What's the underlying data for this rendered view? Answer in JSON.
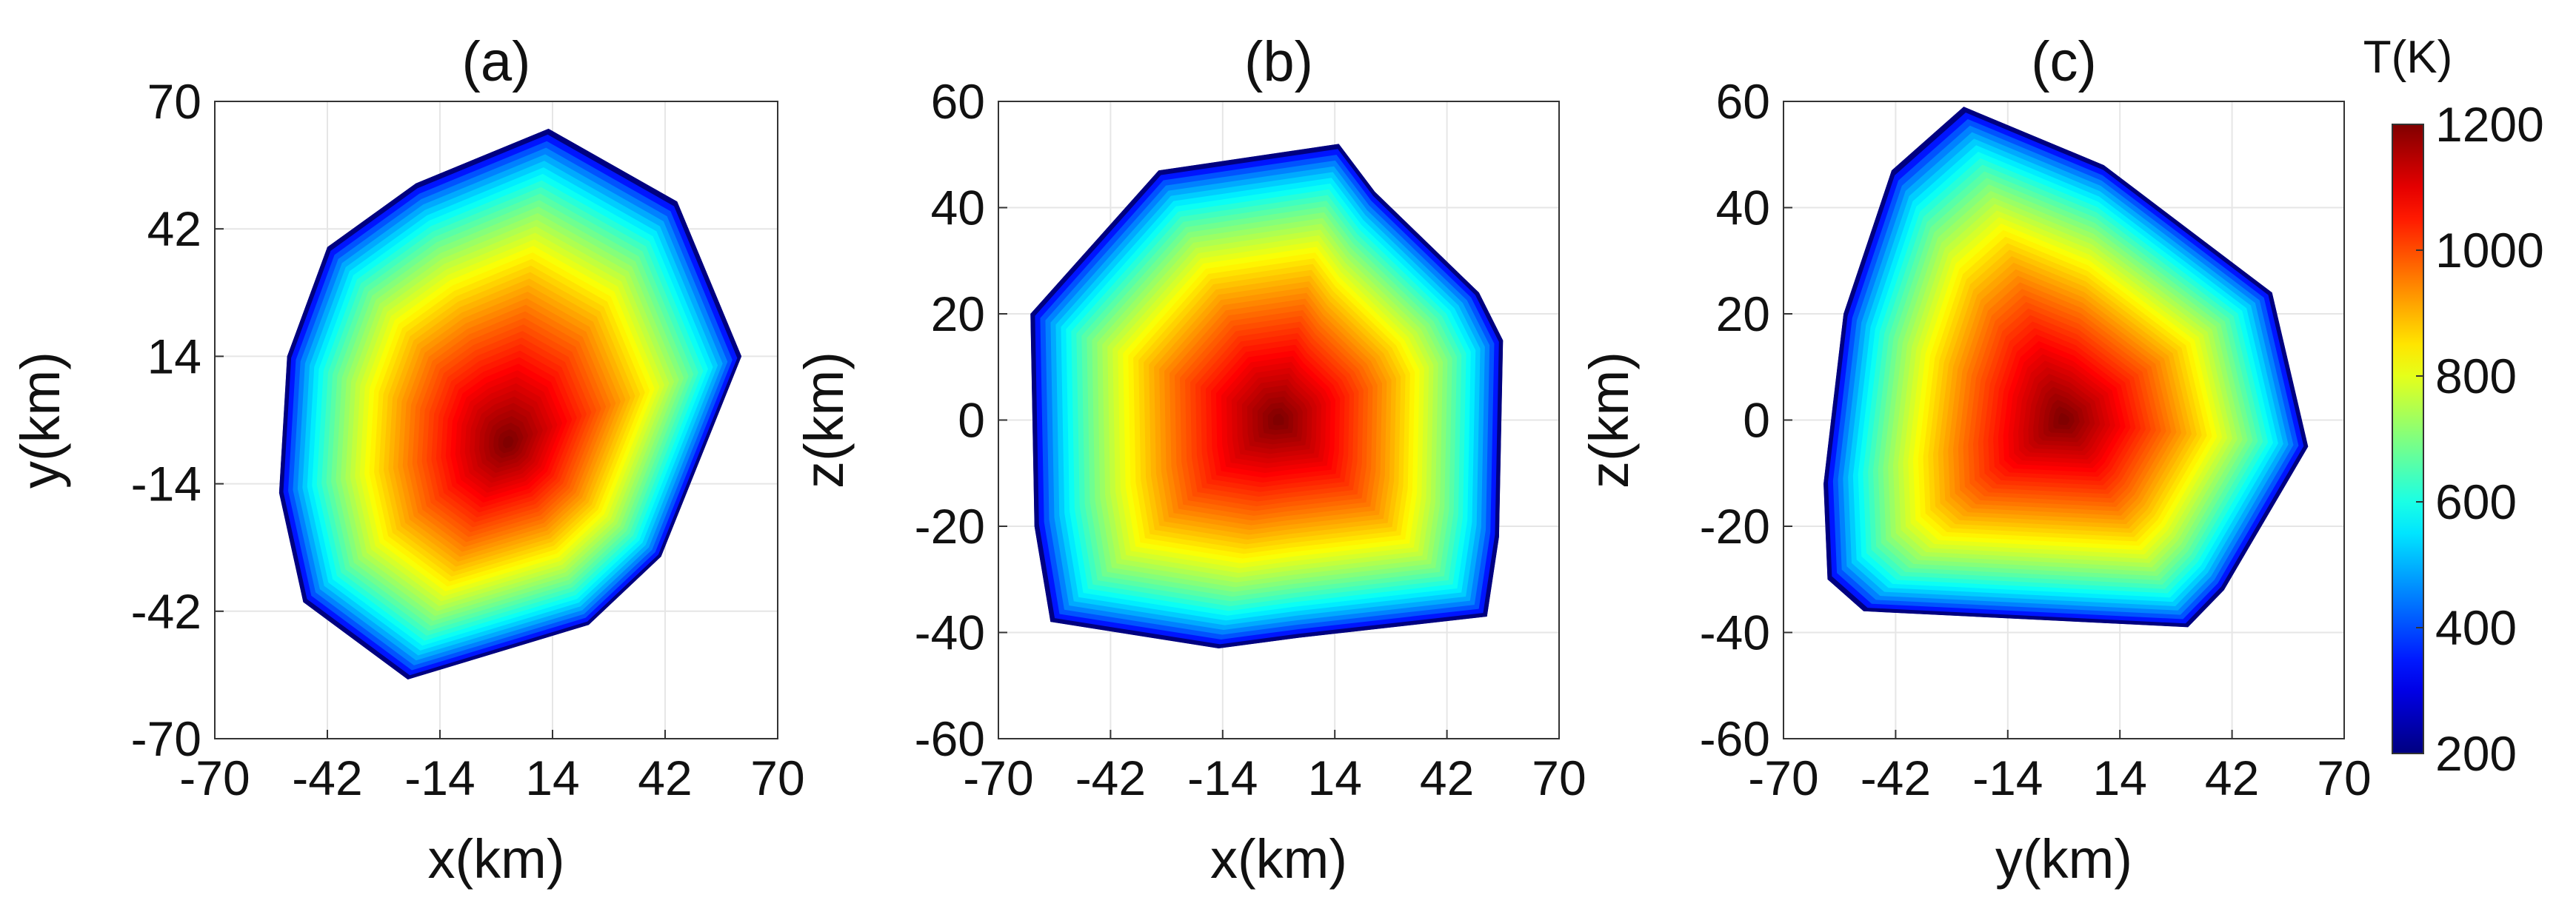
{
  "chart_data": [
    {
      "type": "heatmap",
      "title": "(a)",
      "xlabel": "x(km)",
      "ylabel": "y(km)",
      "xlim": [
        -70,
        70
      ],
      "ylim": [
        -70,
        70
      ],
      "xticks": [
        "-70",
        "-42",
        "-14",
        "14",
        "42",
        "70"
      ],
      "yticks": [
        "-70",
        "-42",
        "-14",
        "14",
        "42",
        "70"
      ],
      "grid": true,
      "field": "T(K)",
      "boundary": [
        [
          13,
          64
        ],
        [
          45,
          48
        ],
        [
          61,
          14
        ],
        [
          41,
          -30
        ],
        [
          23,
          -45
        ],
        [
          -22,
          -57
        ],
        [
          -48,
          -40
        ],
        [
          -54,
          -16
        ],
        [
          -52,
          14
        ],
        [
          -42,
          38
        ],
        [
          -20,
          52
        ]
      ],
      "peak": {
        "x": 3,
        "y": -5,
        "T": 1200
      }
    },
    {
      "type": "heatmap",
      "title": "(b)",
      "xlabel": "x(km)",
      "ylabel": "z(km)",
      "xlim": [
        -70,
        70
      ],
      "ylim": [
        -60,
        60
      ],
      "xticks": [
        "-70",
        "-42",
        "-14",
        "14",
        "42",
        "70"
      ],
      "yticks": [
        "-60",
        "-40",
        "-20",
        "0",
        "20",
        "40",
        "60"
      ],
      "grid": true,
      "field": "T(K)",
      "boundary": [
        [
          -30,
          47
        ],
        [
          15,
          52
        ],
        [
          24,
          43
        ],
        [
          50,
          24
        ],
        [
          56,
          15
        ],
        [
          55,
          -22
        ],
        [
          52,
          -37
        ],
        [
          5,
          -41
        ],
        [
          -15,
          -43
        ],
        [
          -57,
          -38
        ],
        [
          -61,
          -20
        ],
        [
          -62,
          20
        ]
      ],
      "peak": {
        "x": 0,
        "y": 0,
        "T": 1200
      }
    },
    {
      "type": "heatmap",
      "title": "(c)",
      "xlabel": "y(km)",
      "ylabel": "z(km)",
      "xlim": [
        -70,
        70
      ],
      "ylim": [
        -60,
        60
      ],
      "xticks": [
        "-70",
        "-42",
        "-14",
        "14",
        "42",
        "70"
      ],
      "yticks": [
        "-60",
        "-40",
        "-20",
        "0",
        "20",
        "40",
        "60"
      ],
      "grid": true,
      "field": "T(K)",
      "boundary": [
        [
          -25,
          59
        ],
        [
          10,
          48
        ],
        [
          52,
          24
        ],
        [
          61,
          -5
        ],
        [
          40,
          -32
        ],
        [
          31,
          -39
        ],
        [
          -50,
          -36
        ],
        [
          -59,
          -30
        ],
        [
          -60,
          -12
        ],
        [
          -55,
          20
        ],
        [
          -43,
          47
        ]
      ],
      "peak": {
        "x": 0,
        "y": 0,
        "T": 1200
      }
    }
  ],
  "colorbar": {
    "title": "T(K)",
    "min": 200,
    "max": 1200,
    "ticks": [
      "200",
      "400",
      "600",
      "800",
      "1000",
      "1200"
    ],
    "colormap": "jet"
  }
}
